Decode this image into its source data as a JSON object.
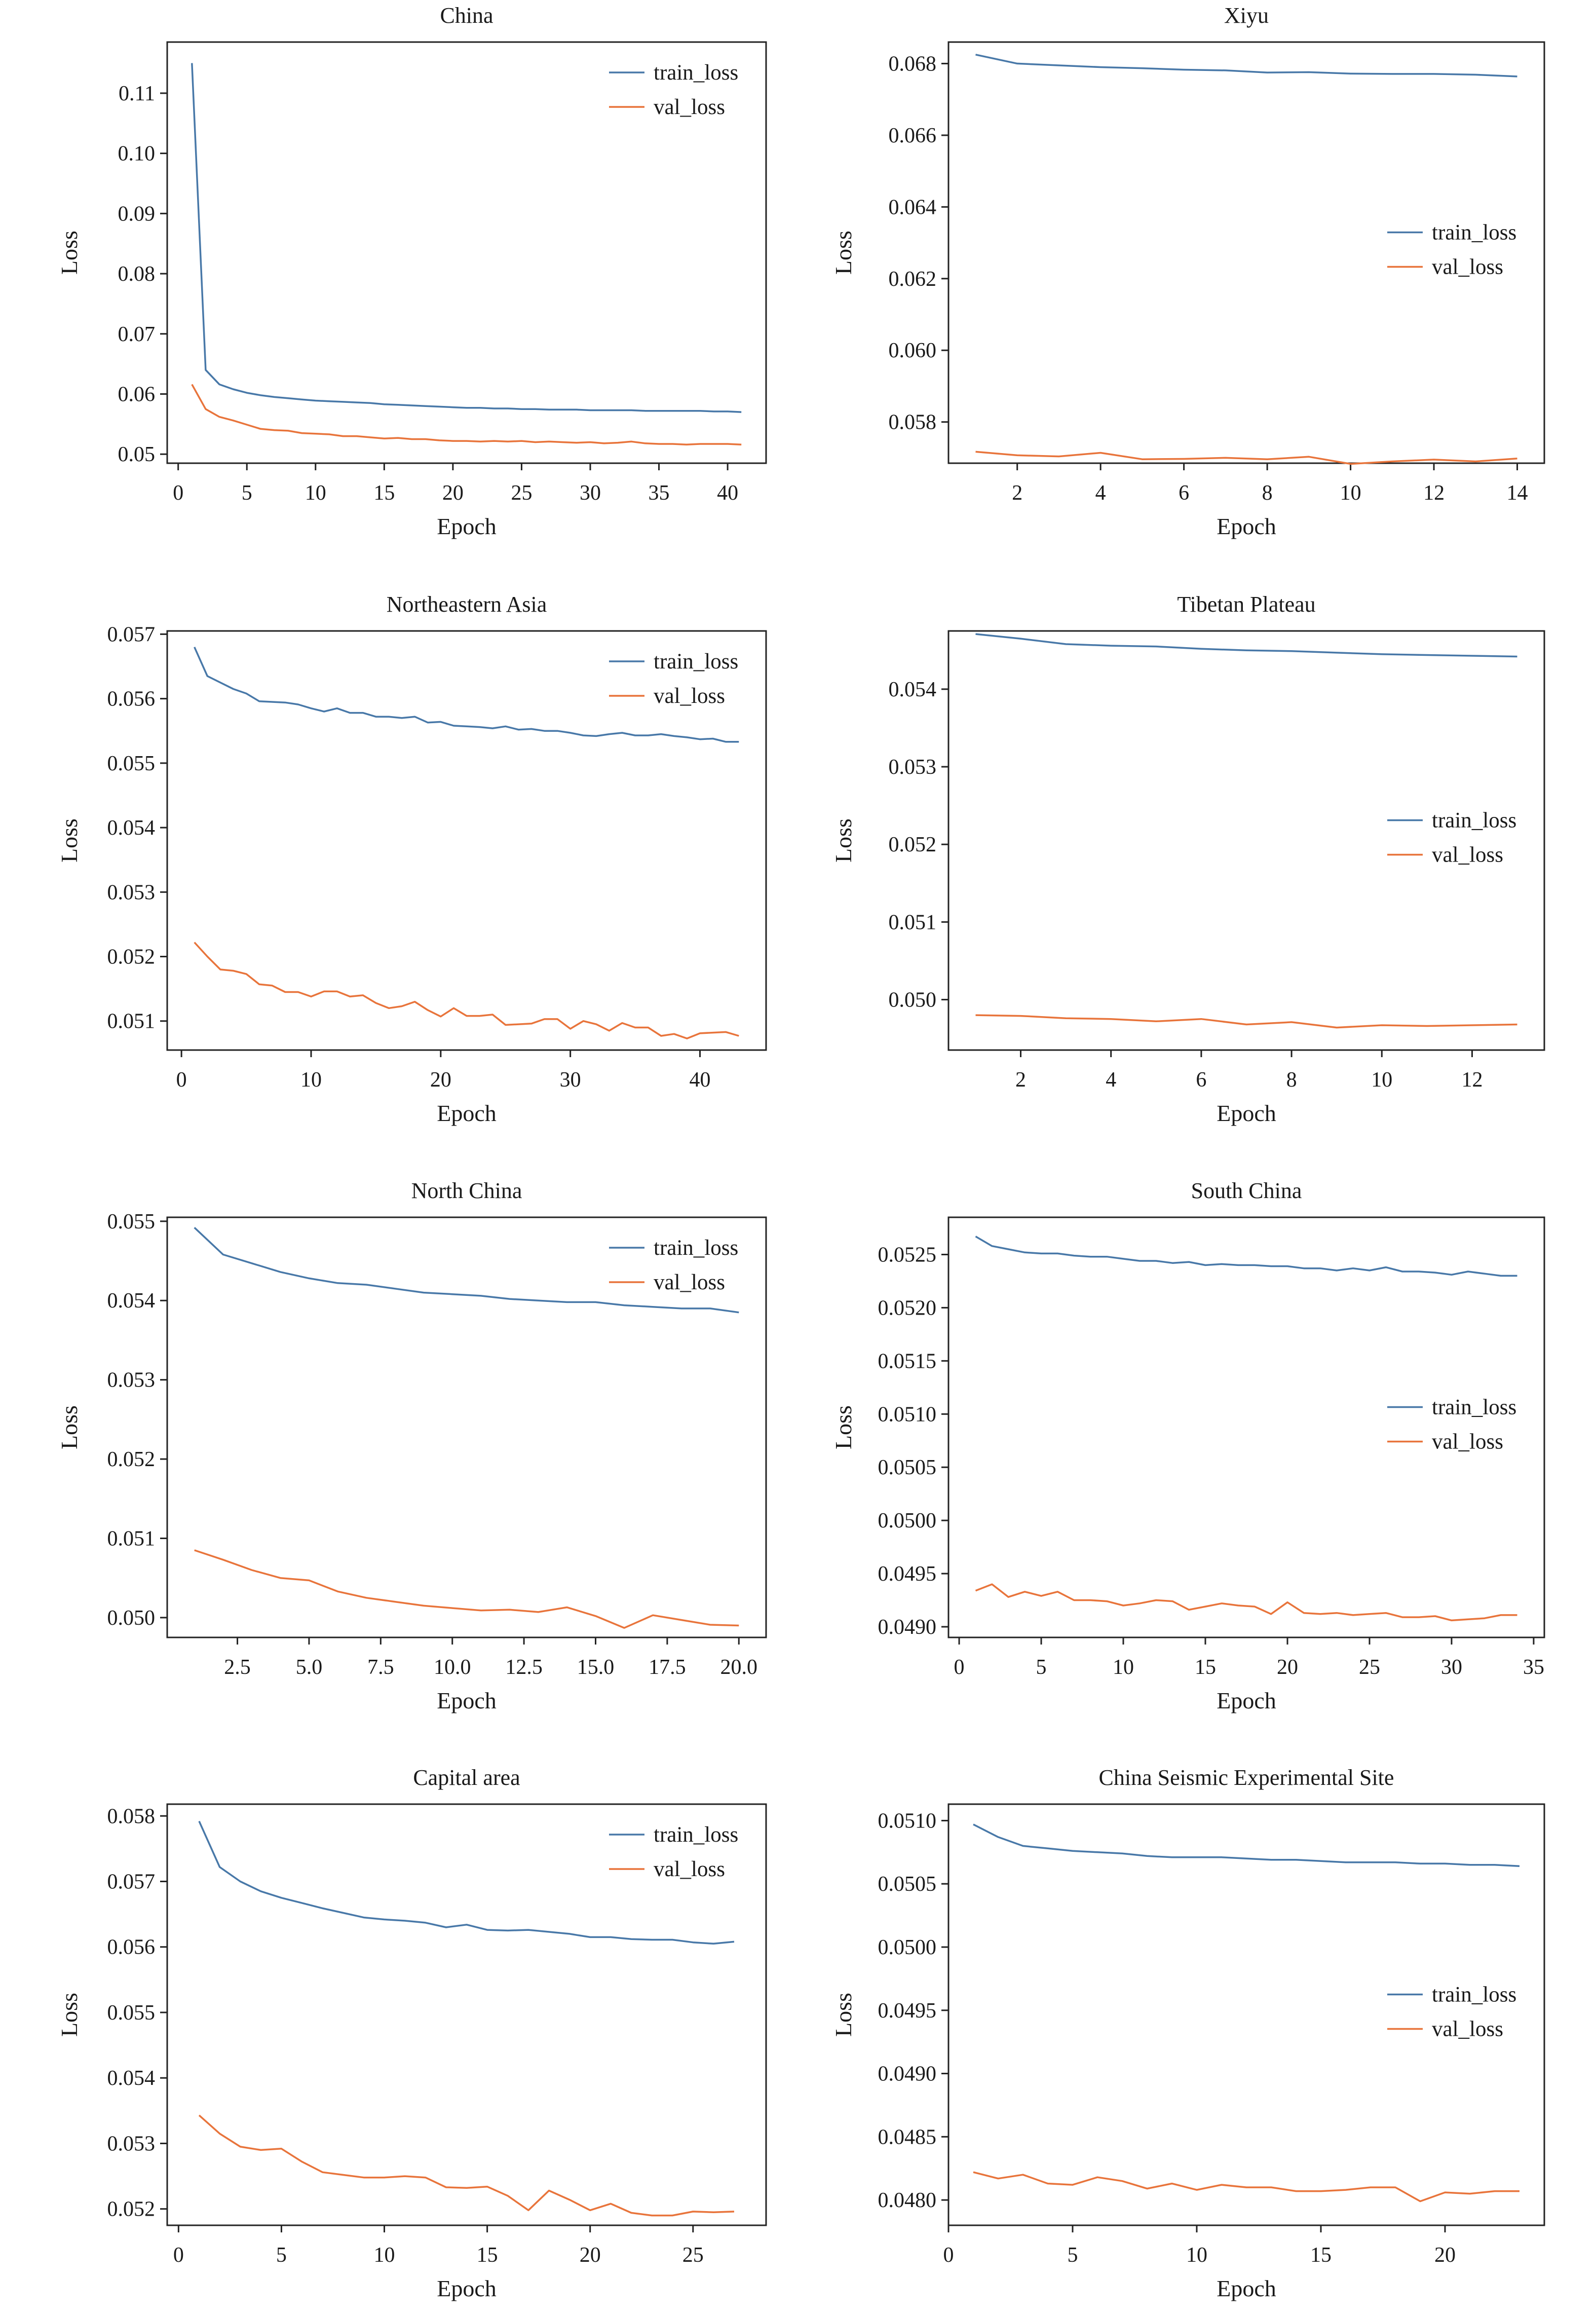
{
  "chart_data": [
    {
      "type": "line",
      "title": "China",
      "xlabel": "Epoch",
      "ylabel": "Loss",
      "xlim": [
        -0.8,
        42.8
      ],
      "ylim": [
        0.0485,
        0.1185
      ],
      "xticks": [
        0,
        5,
        10,
        15,
        20,
        25,
        30,
        35,
        40
      ],
      "xtick_labels": [
        "0",
        "5",
        "10",
        "15",
        "20",
        "25",
        "30",
        "35",
        "40"
      ],
      "yticks": [
        0.05,
        0.06,
        0.07,
        0.08,
        0.09,
        0.1,
        0.11
      ],
      "ytick_labels": [
        "0.05",
        "0.06",
        "0.07",
        "0.08",
        "0.09",
        "0.10",
        "0.11"
      ],
      "legend_position": "top-right",
      "grid": false,
      "x_start": 1,
      "series": [
        {
          "name": "train_loss",
          "color": "#4878a8",
          "values": [
            0.115,
            0.064,
            0.0616,
            0.0608,
            0.0602,
            0.0598,
            0.0595,
            0.0593,
            0.0591,
            0.0589,
            0.0588,
            0.0587,
            0.0586,
            0.0585,
            0.0583,
            0.0582,
            0.0581,
            0.058,
            0.0579,
            0.0578,
            0.0577,
            0.0577,
            0.0576,
            0.0576,
            0.0575,
            0.0575,
            0.0574,
            0.0574,
            0.0574,
            0.0573,
            0.0573,
            0.0573,
            0.0573,
            0.0572,
            0.0572,
            0.0572,
            0.0572,
            0.0572,
            0.0571,
            0.0571,
            0.057
          ]
        },
        {
          "name": "val_loss",
          "color": "#e8743b",
          "values": [
            0.0616,
            0.0575,
            0.0562,
            0.0556,
            0.0549,
            0.0542,
            0.054,
            0.0539,
            0.0535,
            0.0534,
            0.0533,
            0.053,
            0.053,
            0.0528,
            0.0526,
            0.0527,
            0.0525,
            0.0525,
            0.0523,
            0.0522,
            0.0522,
            0.0521,
            0.0522,
            0.0521,
            0.0522,
            0.052,
            0.0521,
            0.052,
            0.0519,
            0.052,
            0.0518,
            0.0519,
            0.0521,
            0.0518,
            0.0517,
            0.0517,
            0.0516,
            0.0517,
            0.0517,
            0.0517,
            0.0516
          ]
        }
      ]
    },
    {
      "type": "line",
      "title": "Xiyu",
      "xlabel": "Epoch",
      "ylabel": "Loss",
      "xlim": [
        0.35,
        14.65
      ],
      "ylim": [
        0.05685,
        0.0686
      ],
      "xticks": [
        2,
        4,
        6,
        8,
        10,
        12,
        14
      ],
      "xtick_labels": [
        "2",
        "4",
        "6",
        "8",
        "10",
        "12",
        "14"
      ],
      "yticks": [
        0.058,
        0.06,
        0.062,
        0.064,
        0.066,
        0.068
      ],
      "ytick_labels": [
        "0.058",
        "0.060",
        "0.062",
        "0.064",
        "0.066",
        "0.068"
      ],
      "legend_position": "center-right",
      "grid": false,
      "x_start": 1,
      "series": [
        {
          "name": "train_loss",
          "color": "#4878a8",
          "values": [
            0.06825,
            0.068,
            0.06795,
            0.0679,
            0.06787,
            0.06783,
            0.06781,
            0.06775,
            0.06776,
            0.06772,
            0.06771,
            0.06771,
            0.06769,
            0.06764
          ]
        },
        {
          "name": "val_loss",
          "color": "#e8743b",
          "values": [
            0.05717,
            0.05707,
            0.05704,
            0.05714,
            0.05696,
            0.05697,
            0.057,
            0.05696,
            0.05703,
            0.05683,
            0.0569,
            0.05695,
            0.0569,
            0.05698
          ]
        }
      ]
    },
    {
      "type": "line",
      "title": "Northeastern Asia",
      "xlabel": "Epoch",
      "ylabel": "Loss",
      "xlim": [
        -1.1,
        45.1
      ],
      "ylim": [
        0.05055,
        0.05705
      ],
      "xticks": [
        0,
        10,
        20,
        30,
        40
      ],
      "xtick_labels": [
        "0",
        "10",
        "20",
        "30",
        "40"
      ],
      "yticks": [
        0.051,
        0.052,
        0.053,
        0.054,
        0.055,
        0.056,
        0.057
      ],
      "ytick_labels": [
        "0.051",
        "0.052",
        "0.053",
        "0.054",
        "0.055",
        "0.056",
        "0.057"
      ],
      "legend_position": "top-right",
      "grid": false,
      "x_start": 1,
      "series": [
        {
          "name": "train_loss",
          "color": "#4878a8",
          "values": [
            0.0568,
            0.05635,
            0.05625,
            0.05615,
            0.05608,
            0.05596,
            0.05595,
            0.05594,
            0.05591,
            0.05585,
            0.0558,
            0.05585,
            0.05578,
            0.05578,
            0.05572,
            0.05572,
            0.0557,
            0.05572,
            0.05563,
            0.05564,
            0.05558,
            0.05557,
            0.05556,
            0.05554,
            0.05557,
            0.05552,
            0.05553,
            0.0555,
            0.0555,
            0.05547,
            0.05543,
            0.05542,
            0.05545,
            0.05547,
            0.05543,
            0.05543,
            0.05545,
            0.05542,
            0.0554,
            0.05537,
            0.05538,
            0.05533,
            0.05533
          ]
        },
        {
          "name": "val_loss",
          "color": "#e8743b",
          "values": [
            0.05222,
            0.052,
            0.0518,
            0.05178,
            0.05173,
            0.05157,
            0.05155,
            0.05145,
            0.05145,
            0.05138,
            0.05146,
            0.05146,
            0.05138,
            0.0514,
            0.05128,
            0.0512,
            0.05123,
            0.0513,
            0.05117,
            0.05107,
            0.0512,
            0.05108,
            0.05108,
            0.0511,
            0.05094,
            0.05095,
            0.05096,
            0.05103,
            0.05103,
            0.05088,
            0.051,
            0.05095,
            0.05085,
            0.05097,
            0.0509,
            0.0509,
            0.05077,
            0.0508,
            0.05073,
            0.05081,
            0.05082,
            0.05083,
            0.05077
          ]
        }
      ]
    },
    {
      "type": "line",
      "title": "Tibetan Plateau",
      "xlabel": "Epoch",
      "ylabel": "Loss",
      "xlim": [
        0.4,
        13.6
      ],
      "ylim": [
        0.04935,
        0.05475
      ],
      "xticks": [
        2,
        4,
        6,
        8,
        10,
        12
      ],
      "xtick_labels": [
        "2",
        "4",
        "6",
        "8",
        "10",
        "12"
      ],
      "yticks": [
        0.05,
        0.051,
        0.052,
        0.053,
        0.054
      ],
      "ytick_labels": [
        "0.050",
        "0.051",
        "0.052",
        "0.053",
        "0.054"
      ],
      "legend_position": "center-right",
      "grid": false,
      "x_start": 1,
      "series": [
        {
          "name": "train_loss",
          "color": "#4878a8",
          "values": [
            0.05471,
            0.05465,
            0.05458,
            0.05456,
            0.05455,
            0.05452,
            0.0545,
            0.05449,
            0.05447,
            0.05445,
            0.05444,
            0.05443,
            0.05442
          ]
        },
        {
          "name": "val_loss",
          "color": "#e8743b",
          "values": [
            0.0498,
            0.04979,
            0.04976,
            0.04975,
            0.04972,
            0.04975,
            0.04968,
            0.04971,
            0.04964,
            0.04967,
            0.04966,
            0.04967,
            0.04968
          ]
        }
      ]
    },
    {
      "type": "line",
      "title": "North China",
      "xlabel": "Epoch",
      "ylabel": "Loss",
      "xlim": [
        0.05,
        20.95
      ],
      "ylim": [
        0.04975,
        0.05505
      ],
      "xticks": [
        2.5,
        5.0,
        7.5,
        10.0,
        12.5,
        15.0,
        17.5,
        20.0
      ],
      "xtick_labels": [
        "2.5",
        "5.0",
        "7.5",
        "10.0",
        "12.5",
        "15.0",
        "17.5",
        "20.0"
      ],
      "yticks": [
        0.05,
        0.051,
        0.052,
        0.053,
        0.054,
        0.055
      ],
      "ytick_labels": [
        "0.050",
        "0.051",
        "0.052",
        "0.053",
        "0.054",
        "0.055"
      ],
      "legend_position": "top-right",
      "grid": false,
      "x_start": 1,
      "series": [
        {
          "name": "train_loss",
          "color": "#4878a8",
          "values": [
            0.05492,
            0.05458,
            0.05447,
            0.05436,
            0.05428,
            0.05422,
            0.0542,
            0.05415,
            0.0541,
            0.05408,
            0.05406,
            0.05402,
            0.054,
            0.05398,
            0.05398,
            0.05394,
            0.05392,
            0.0539,
            0.0539,
            0.05385
          ]
        },
        {
          "name": "val_loss",
          "color": "#e8743b",
          "values": [
            0.05085,
            0.05073,
            0.0506,
            0.0505,
            0.05047,
            0.05033,
            0.05025,
            0.0502,
            0.05015,
            0.05012,
            0.05009,
            0.0501,
            0.05007,
            0.05013,
            0.05002,
            0.04987,
            0.05003,
            0.04997,
            0.04991,
            0.0499
          ]
        }
      ]
    },
    {
      "type": "line",
      "title": "South China",
      "xlabel": "Epoch",
      "ylabel": "Loss",
      "xlim": [
        -0.65,
        35.65
      ],
      "ylim": [
        0.0489,
        0.05285
      ],
      "xticks": [
        0,
        5,
        10,
        15,
        20,
        25,
        30,
        35
      ],
      "xtick_labels": [
        "0",
        "5",
        "10",
        "15",
        "20",
        "25",
        "30",
        "35"
      ],
      "yticks": [
        0.049,
        0.0495,
        0.05,
        0.0505,
        0.051,
        0.0515,
        0.052,
        0.0525
      ],
      "ytick_labels": [
        "0.0490",
        "0.0495",
        "0.0500",
        "0.0505",
        "0.0510",
        "0.0515",
        "0.0520",
        "0.0525"
      ],
      "legend_position": "center-right",
      "grid": false,
      "x_start": 1,
      "series": [
        {
          "name": "train_loss",
          "color": "#4878a8",
          "values": [
            0.05267,
            0.05258,
            0.05255,
            0.05252,
            0.05251,
            0.05251,
            0.05249,
            0.05248,
            0.05248,
            0.05246,
            0.05244,
            0.05244,
            0.05242,
            0.05243,
            0.0524,
            0.05241,
            0.0524,
            0.0524,
            0.05239,
            0.05239,
            0.05237,
            0.05237,
            0.05235,
            0.05237,
            0.05235,
            0.05238,
            0.05234,
            0.05234,
            0.05233,
            0.05231,
            0.05234,
            0.05232,
            0.0523,
            0.0523
          ]
        },
        {
          "name": "val_loss",
          "color": "#e8743b",
          "values": [
            0.04934,
            0.0494,
            0.04928,
            0.04933,
            0.04929,
            0.04933,
            0.04925,
            0.04925,
            0.04924,
            0.0492,
            0.04922,
            0.04925,
            0.04924,
            0.04916,
            0.04919,
            0.04922,
            0.0492,
            0.04919,
            0.04912,
            0.04923,
            0.04913,
            0.04912,
            0.04913,
            0.04911,
            0.04912,
            0.04913,
            0.04909,
            0.04909,
            0.0491,
            0.04906,
            0.04907,
            0.04908,
            0.04911,
            0.04911
          ]
        }
      ]
    },
    {
      "type": "line",
      "title": "Capital area",
      "xlabel": "Epoch",
      "ylabel": "Loss",
      "xlim": [
        -0.55,
        28.55
      ],
      "ylim": [
        0.05175,
        0.05818
      ],
      "xticks": [
        0,
        5,
        10,
        15,
        20,
        25
      ],
      "xtick_labels": [
        "0",
        "5",
        "10",
        "15",
        "20",
        "25"
      ],
      "yticks": [
        0.052,
        0.053,
        0.054,
        0.055,
        0.056,
        0.057,
        0.058
      ],
      "ytick_labels": [
        "0.052",
        "0.053",
        "0.054",
        "0.055",
        "0.056",
        "0.057",
        "0.058"
      ],
      "legend_position": "top-right",
      "grid": false,
      "x_start": 1,
      "series": [
        {
          "name": "train_loss",
          "color": "#4878a8",
          "values": [
            0.05792,
            0.05722,
            0.057,
            0.05685,
            0.05675,
            0.05667,
            0.05659,
            0.05652,
            0.05645,
            0.05642,
            0.0564,
            0.05637,
            0.0563,
            0.05634,
            0.05626,
            0.05625,
            0.05626,
            0.05623,
            0.0562,
            0.05615,
            0.05615,
            0.05612,
            0.05611,
            0.05611,
            0.05607,
            0.05605,
            0.05608
          ]
        },
        {
          "name": "val_loss",
          "color": "#e8743b",
          "values": [
            0.05343,
            0.05315,
            0.05295,
            0.0529,
            0.05292,
            0.05272,
            0.05256,
            0.05252,
            0.05248,
            0.05248,
            0.0525,
            0.05248,
            0.05233,
            0.05232,
            0.05234,
            0.0522,
            0.05198,
            0.05228,
            0.05214,
            0.05198,
            0.05208,
            0.05194,
            0.0519,
            0.0519,
            0.05196,
            0.05195,
            0.05196
          ]
        }
      ]
    },
    {
      "type": "line",
      "title": "China Seismic Experimental Site",
      "xlabel": "Epoch",
      "ylabel": "Loss",
      "xlim": [
        0.0,
        24.0
      ],
      "ylim": [
        0.0478,
        0.05113
      ],
      "xticks": [
        0,
        5,
        10,
        15,
        20
      ],
      "xtick_labels": [
        "0",
        "5",
        "10",
        "15",
        "20"
      ],
      "yticks": [
        0.048,
        0.0485,
        0.049,
        0.0495,
        0.05,
        0.0505,
        0.051
      ],
      "ytick_labels": [
        "0.0480",
        "0.0485",
        "0.0490",
        "0.0495",
        "0.0500",
        "0.0505",
        "0.0510"
      ],
      "legend_position": "center-right",
      "grid": false,
      "x_start": 1,
      "series": [
        {
          "name": "train_loss",
          "color": "#4878a8",
          "values": [
            0.05097,
            0.05087,
            0.0508,
            0.05078,
            0.05076,
            0.05075,
            0.05074,
            0.05072,
            0.05071,
            0.05071,
            0.05071,
            0.0507,
            0.05069,
            0.05069,
            0.05068,
            0.05067,
            0.05067,
            0.05067,
            0.05066,
            0.05066,
            0.05065,
            0.05065,
            0.05064
          ]
        },
        {
          "name": "val_loss",
          "color": "#e8743b",
          "values": [
            0.04822,
            0.04817,
            0.0482,
            0.04813,
            0.04812,
            0.04818,
            0.04815,
            0.04809,
            0.04813,
            0.04808,
            0.04812,
            0.0481,
            0.0481,
            0.04807,
            0.04807,
            0.04808,
            0.0481,
            0.0481,
            0.04799,
            0.04806,
            0.04805,
            0.04807,
            0.04807
          ]
        }
      ]
    }
  ]
}
